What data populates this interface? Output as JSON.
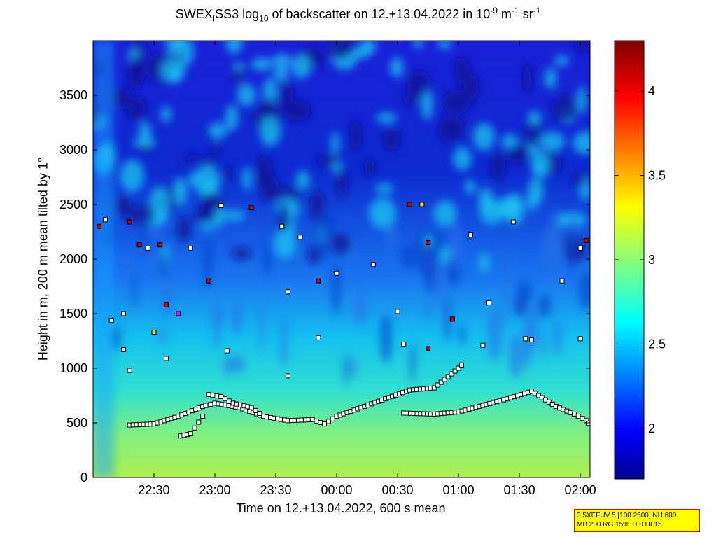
{
  "chart_data": {
    "type": "heatmap",
    "title_parts": {
      "a": "SWEX",
      "b": "I",
      "c": "SS3 log",
      "d": "10",
      "e": " of backscatter on 12.+13.04.2022 in 10",
      "f": "-9",
      "g": " m",
      "h": "-1",
      "i": " sr",
      "j": "-1"
    },
    "xlabel": "Time on 12.+13.04.2022, 600 s mean",
    "ylabel": "Height in m, 200 m mean tilted by 1°",
    "x_tick_labels": [
      "22:30",
      "23:00",
      "23:30",
      "00:00",
      "00:30",
      "01:00",
      "01:30",
      "02:00"
    ],
    "x_tick_hours": [
      22.5,
      23.0,
      23.5,
      24.0,
      24.5,
      25.0,
      25.5,
      26.0
    ],
    "xlim_hours": [
      22.0,
      26.08
    ],
    "y_ticks": [
      0,
      500,
      1000,
      1500,
      2000,
      2500,
      3000,
      3500
    ],
    "ylim": [
      0,
      4000
    ],
    "colorbar": {
      "ticks": [
        2,
        2.5,
        3,
        3.5,
        4
      ],
      "range": [
        1.7,
        4.3
      ],
      "colormap": "jet"
    },
    "layer_tracks": [
      {
        "name": "lower",
        "points": [
          [
            22.3,
            480
          ],
          [
            22.5,
            490
          ],
          [
            22.7,
            560
          ],
          [
            22.9,
            650
          ],
          [
            23.0,
            680
          ],
          [
            23.2,
            640
          ],
          [
            23.4,
            560
          ],
          [
            23.6,
            520
          ],
          [
            23.8,
            530
          ],
          [
            23.9,
            490
          ],
          [
            24.0,
            560
          ],
          [
            24.2,
            640
          ],
          [
            24.4,
            720
          ],
          [
            24.6,
            800
          ],
          [
            24.8,
            820
          ],
          [
            25.0,
            1000
          ],
          [
            25.05,
            1060
          ]
        ]
      },
      {
        "name": "secondary",
        "points": [
          [
            22.72,
            380
          ],
          [
            22.8,
            400
          ],
          [
            22.9,
            560
          ],
          [
            22.95,
            760
          ],
          [
            23.05,
            740
          ],
          [
            23.15,
            680
          ],
          [
            23.3,
            640
          ],
          [
            23.4,
            560
          ]
        ]
      },
      {
        "name": "late",
        "points": [
          [
            24.55,
            590
          ],
          [
            24.8,
            580
          ],
          [
            25.0,
            600
          ],
          [
            25.2,
            660
          ],
          [
            25.4,
            720
          ],
          [
            25.6,
            790
          ],
          [
            25.8,
            650
          ],
          [
            25.95,
            580
          ],
          [
            26.05,
            520
          ],
          [
            26.08,
            470
          ]
        ]
      }
    ],
    "scatter_points": [
      {
        "x": 22.05,
        "y": 2300,
        "c": "#cc0000"
      },
      {
        "x": 22.1,
        "y": 2360,
        "c": "#ffffff"
      },
      {
        "x": 22.3,
        "y": 2340,
        "c": "#cc0000"
      },
      {
        "x": 22.38,
        "y": 2130,
        "c": "#cc0000"
      },
      {
        "x": 22.45,
        "y": 2100,
        "c": "#ffffff"
      },
      {
        "x": 22.55,
        "y": 2130,
        "c": "#cc0000"
      },
      {
        "x": 22.8,
        "y": 2100,
        "c": "#ffffff"
      },
      {
        "x": 22.95,
        "y": 1800,
        "c": "#cc0000"
      },
      {
        "x": 23.05,
        "y": 2490,
        "c": "#ffffff"
      },
      {
        "x": 23.3,
        "y": 2470,
        "c": "#cc0000"
      },
      {
        "x": 23.55,
        "y": 2300,
        "c": "#ffffff"
      },
      {
        "x": 23.7,
        "y": 2200,
        "c": "#ffffff"
      },
      {
        "x": 24.0,
        "y": 1870,
        "c": "#ffffff"
      },
      {
        "x": 24.3,
        "y": 1950,
        "c": "#ffffff"
      },
      {
        "x": 24.5,
        "y": 1520,
        "c": "#ffffff"
      },
      {
        "x": 24.6,
        "y": 2500,
        "c": "#cc0000"
      },
      {
        "x": 24.7,
        "y": 2500,
        "c": "#ffd700"
      },
      {
        "x": 24.75,
        "y": 2150,
        "c": "#cc0000"
      },
      {
        "x": 24.95,
        "y": 1450,
        "c": "#cc0000"
      },
      {
        "x": 25.1,
        "y": 2220,
        "c": "#ffffff"
      },
      {
        "x": 25.25,
        "y": 1600,
        "c": "#ffffff"
      },
      {
        "x": 25.45,
        "y": 2340,
        "c": "#ffffff"
      },
      {
        "x": 25.6,
        "y": 1260,
        "c": "#ffffff"
      },
      {
        "x": 25.85,
        "y": 1800,
        "c": "#ffffff"
      },
      {
        "x": 26.0,
        "y": 2100,
        "c": "#ffffff"
      },
      {
        "x": 26.05,
        "y": 2170,
        "c": "#cc0000"
      },
      {
        "x": 22.15,
        "y": 1440,
        "c": "#ffffff"
      },
      {
        "x": 22.25,
        "y": 1500,
        "c": "#ffffff"
      },
      {
        "x": 22.5,
        "y": 1330,
        "c": "#ffd700"
      },
      {
        "x": 22.6,
        "y": 1580,
        "c": "#cc0000"
      },
      {
        "x": 22.7,
        "y": 1500,
        "c": "#ff00ff"
      },
      {
        "x": 22.3,
        "y": 980,
        "c": "#ffffff"
      },
      {
        "x": 22.6,
        "y": 1090,
        "c": "#ffffff"
      },
      {
        "x": 23.1,
        "y": 1160,
        "c": "#ffffff"
      },
      {
        "x": 23.6,
        "y": 930,
        "c": "#ffffff"
      },
      {
        "x": 23.85,
        "y": 1280,
        "c": "#ffffff"
      },
      {
        "x": 24.55,
        "y": 1220,
        "c": "#ffffff"
      },
      {
        "x": 24.75,
        "y": 1180,
        "c": "#cc0000"
      },
      {
        "x": 25.2,
        "y": 1210,
        "c": "#ffffff"
      },
      {
        "x": 25.55,
        "y": 1270,
        "c": "#ffffff"
      },
      {
        "x": 26.0,
        "y": 1270,
        "c": "#ffffff"
      },
      {
        "x": 23.6,
        "y": 1700,
        "c": "#ffffff"
      },
      {
        "x": 23.85,
        "y": 1800,
        "c": "#cc0000"
      },
      {
        "x": 22.25,
        "y": 1170,
        "c": "#ffffff"
      }
    ]
  },
  "info_box": {
    "line1": "3.5XEFUV 5 [100 2500] NH 600",
    "line2": "MB 200 RG 15% TI 0 HI 15"
  }
}
